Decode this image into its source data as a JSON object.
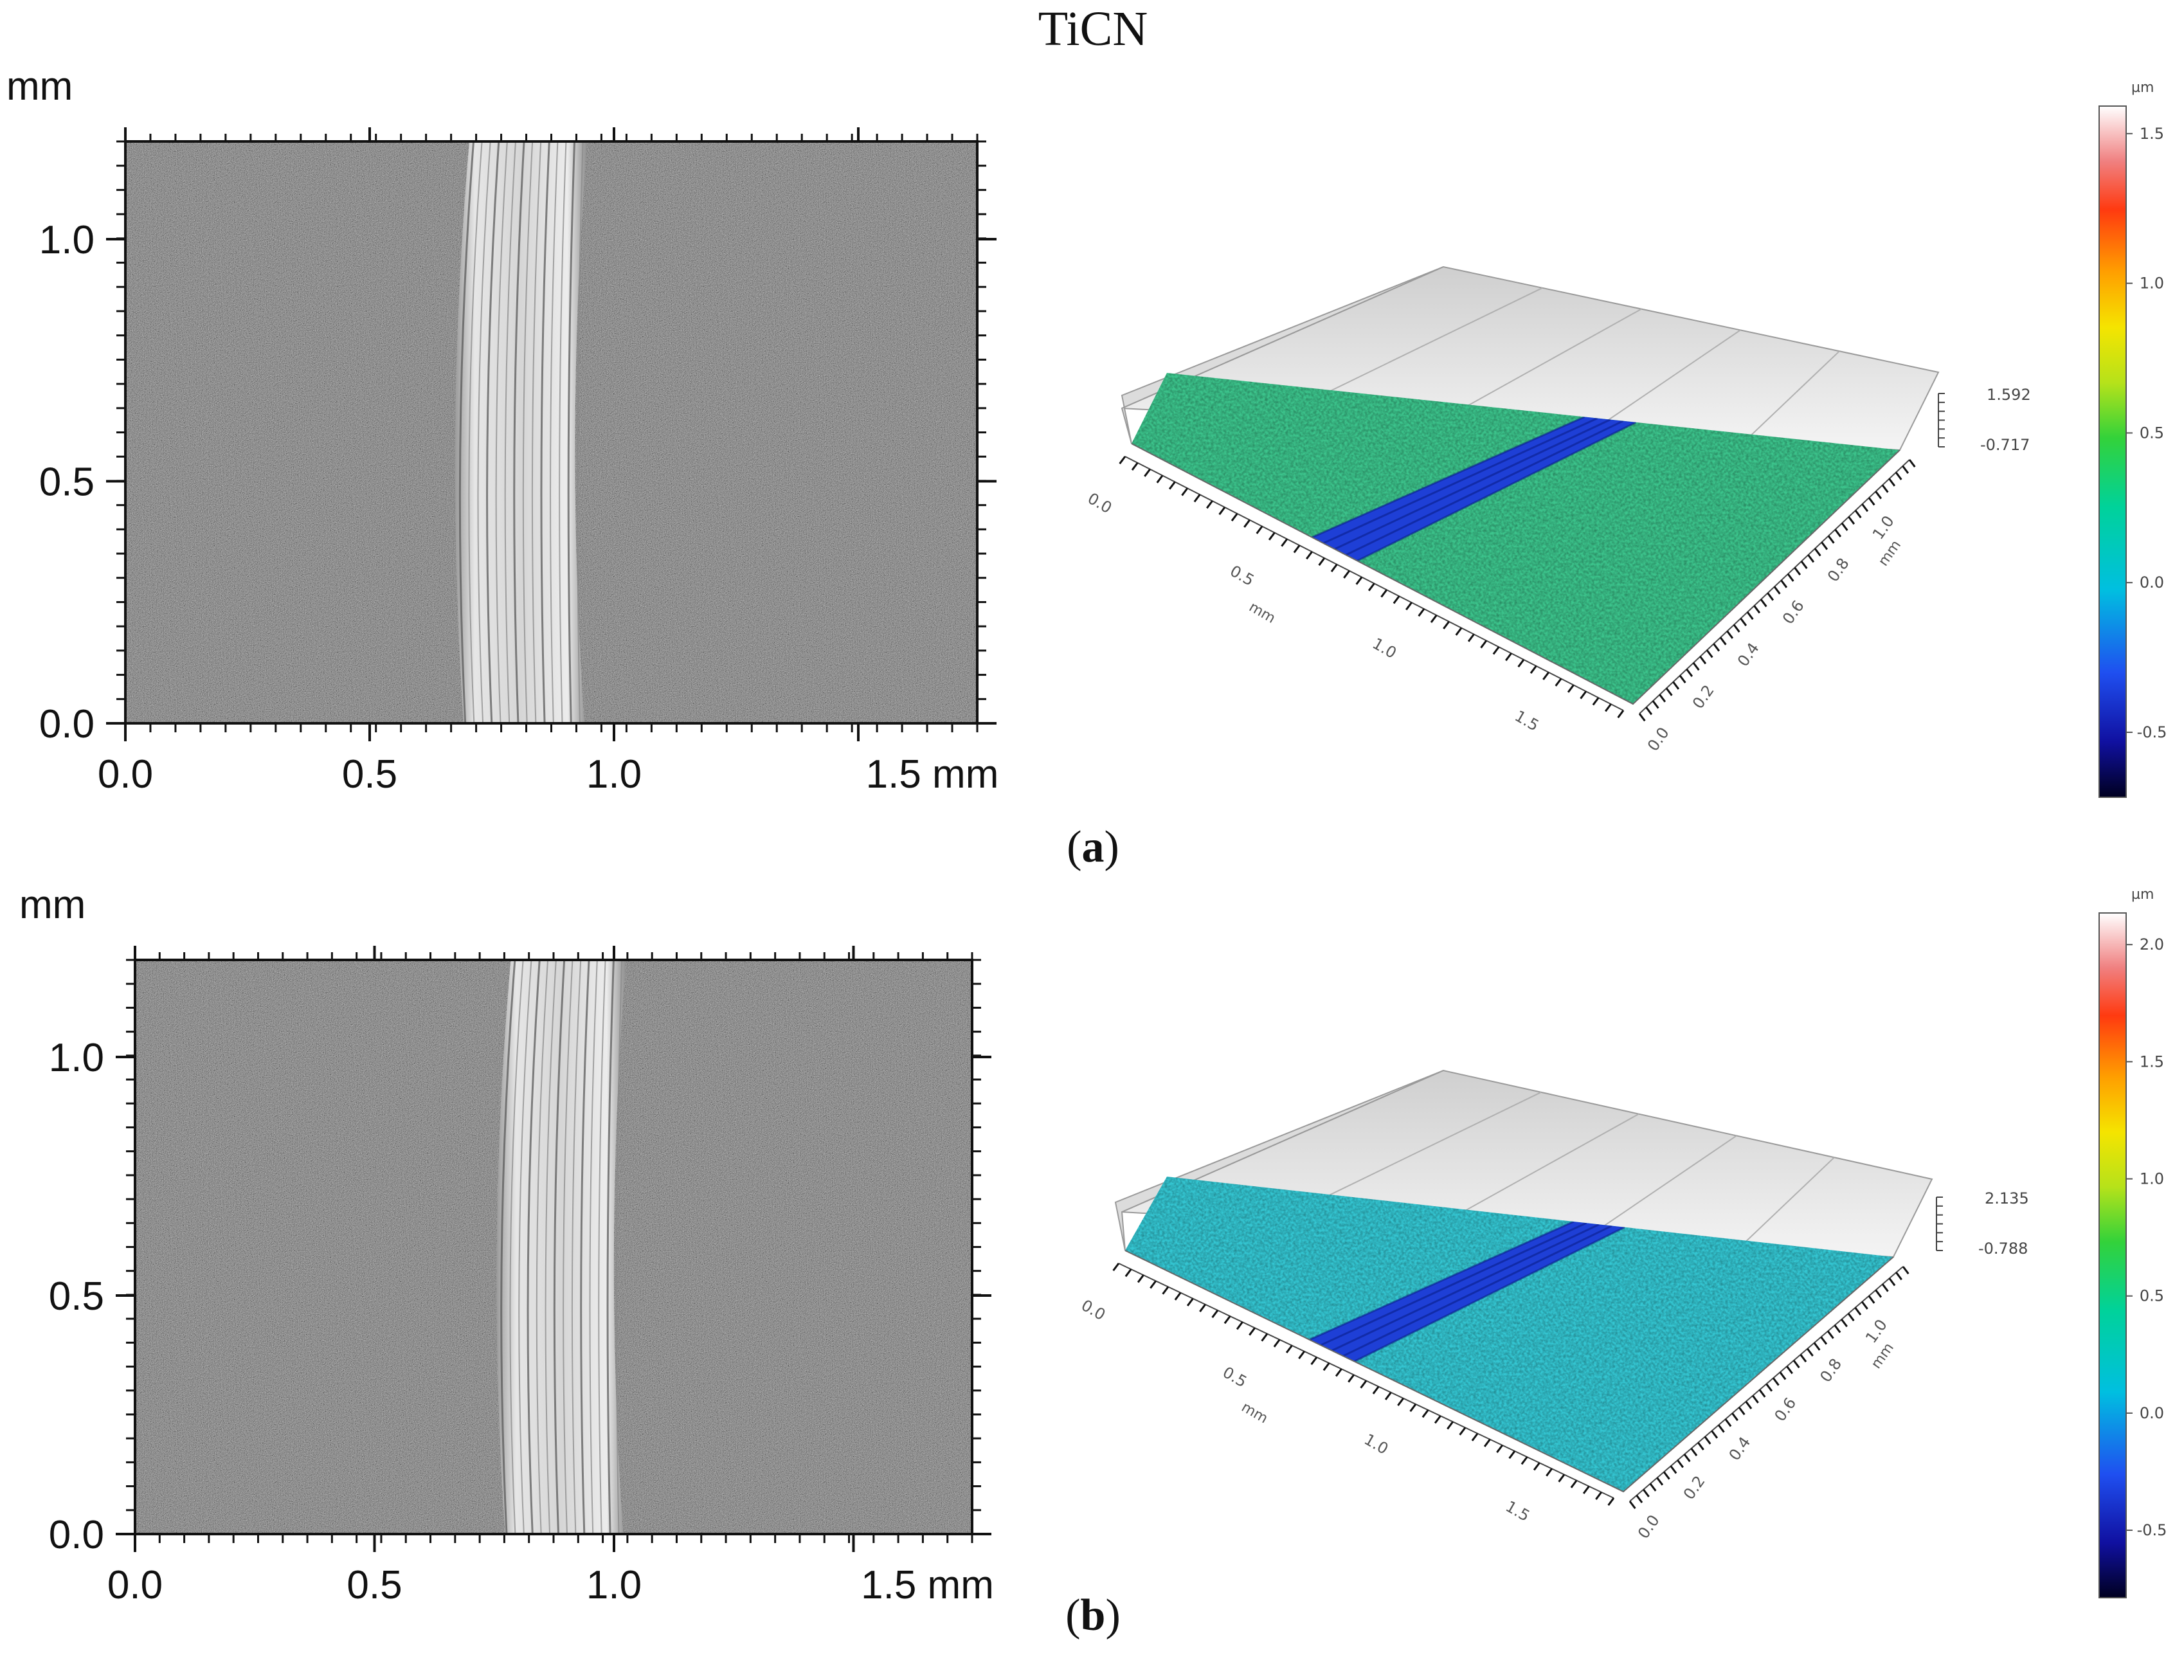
{
  "figure_title": "TiCN",
  "panels": [
    {
      "caption_open": "(",
      "caption_letter": "a",
      "caption_close": ")",
      "micrograph": {
        "y_unit": "mm",
        "x_ticks": [
          "0.0",
          "0.5",
          "1.0",
          "1.5 mm"
        ],
        "y_ticks": [
          "0.0",
          "0.5",
          "1.0"
        ],
        "track_center_mm": 0.81,
        "track_width_mm": 0.27
      },
      "surface3d": {
        "x_ticks": [
          "0.0",
          "0.5",
          "1.0",
          "1.5"
        ],
        "y_ticks": [
          "0.0",
          "0.2",
          "0.4",
          "0.6",
          "0.8",
          "1.0"
        ],
        "x_unit": "mm",
        "y_unit": "mm",
        "z_max": "1.592",
        "z_min": "-0.717",
        "surface_color": "#3cc48c",
        "groove_color": "#1e3fd6"
      },
      "colorbar": {
        "unit": "µm",
        "ticks": [
          "1.5",
          "1.0",
          "0.5",
          "0.0",
          "-0.5"
        ],
        "min": -0.717,
        "max": 1.592
      }
    },
    {
      "caption_open": "(",
      "caption_letter": "b",
      "caption_close": ")",
      "micrograph": {
        "y_unit": "mm",
        "x_ticks": [
          "0.0",
          "0.5",
          "1.0",
          "1.5 mm"
        ],
        "y_ticks": [
          "0.0",
          "0.5",
          "1.0"
        ],
        "track_center_mm": 0.89,
        "track_width_mm": 0.27
      },
      "surface3d": {
        "x_ticks": [
          "0.0",
          "0.5",
          "1.0",
          "1.5"
        ],
        "y_ticks": [
          "0.0",
          "0.2",
          "0.4",
          "0.6",
          "0.8",
          "1.0"
        ],
        "x_unit": "mm",
        "y_unit": "mm",
        "z_max": "2.135",
        "z_min": "-0.788",
        "surface_color": "#34c6d2",
        "groove_color": "#1e3fd6"
      },
      "colorbar": {
        "unit": "µm",
        "ticks": [
          "2.0",
          "1.5",
          "1.0",
          "0.5",
          "0.0",
          "-0.5"
        ],
        "min": -0.788,
        "max": 2.135
      }
    }
  ]
}
